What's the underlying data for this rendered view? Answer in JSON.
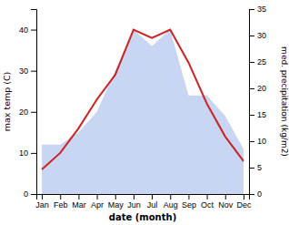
{
  "chart_data": {
    "type": "line",
    "xlabel": "date (month)",
    "ylabel": "max temp (C)",
    "y2label": "med. precipitation (kg/m2)",
    "categories": [
      "Jan",
      "Feb",
      "Mar",
      "Apr",
      "May",
      "Jun",
      "Jul",
      "Aug",
      "Sep",
      "Oct",
      "Nov",
      "Dec"
    ],
    "series": [
      {
        "type": "area",
        "color": "#b0c4ee",
        "values": [
          12,
          12,
          15,
          20,
          30,
          40,
          36,
          40,
          24,
          24,
          19,
          11
        ]
      },
      {
        "type": "line",
        "color": "#cc2222",
        "values": [
          6,
          10,
          16,
          23,
          29,
          40,
          38,
          40,
          32,
          22,
          14,
          8
        ]
      }
    ],
    "ylim": [
      0,
      45
    ],
    "yticks": [
      0,
      10,
      20,
      30,
      40
    ],
    "y2lim": [
      0,
      35
    ],
    "y2ticks": [
      0,
      5,
      10,
      15,
      20,
      25,
      30,
      35
    ],
    "grid": false
  }
}
